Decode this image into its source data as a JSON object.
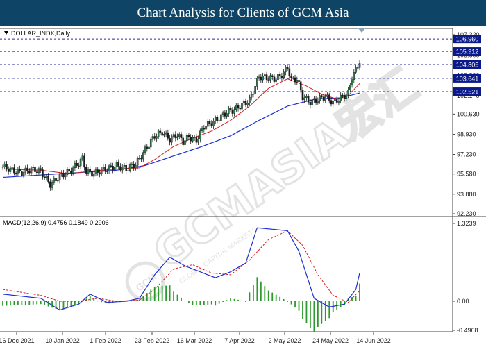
{
  "header": {
    "title": "Chart Analysis for Clients of GCM Asia"
  },
  "watermark": {
    "text": "GCMASIA宏汇",
    "subtext": "GLOBAL CAPITAL MARKETS",
    "logo_mark": "GCM"
  },
  "colors": {
    "bull": "#2e7d4f",
    "bear": "#1a1a1a",
    "ma_fast": "#d21e1e",
    "ma_slow": "#1c2fd1",
    "level_line": "#2a2a9a",
    "level_box": "#0a1a8a",
    "macd_line": "#1c2fd1",
    "signal_line": "#d21e1e",
    "hist": "#2e9a2e",
    "title_bg": "#0e4466"
  },
  "chart_data": [
    {
      "type": "candlestick",
      "symbol_label": "DOLLAR_INDX,Daily",
      "y_ticks": [
        "107.320",
        "105.600",
        "103.890",
        "102.170",
        "100.630",
        "98.930",
        "97.230",
        "95.580",
        "93.880",
        "92.230"
      ],
      "ylim": [
        92.23,
        107.32
      ],
      "x_tick_labels": [
        "16 Dec 2021",
        "10 Jan 2022",
        "1 Feb 2022",
        "23 Feb 2022",
        "16 Mar 2022",
        "7 Apr 2022",
        "2 May 2022",
        "24 May 2022",
        "14 Jun 2022"
      ],
      "levels": [
        {
          "value": 106.96,
          "label": "106.960"
        },
        {
          "value": 105.912,
          "label": "105.912"
        },
        {
          "value": 104.805,
          "label": "104.805"
        },
        {
          "value": 103.641,
          "label": "103.641"
        },
        {
          "value": 102.521,
          "label": "102.521"
        }
      ],
      "close_anchors": [
        [
          0,
          96.2
        ],
        [
          5,
          95.9
        ],
        [
          10,
          95.7
        ],
        [
          15,
          96.0
        ],
        [
          20,
          95.8
        ],
        [
          25,
          94.7
        ],
        [
          30,
          95.4
        ],
        [
          35,
          95.8
        ],
        [
          40,
          96.5
        ],
        [
          42,
          96.9
        ],
        [
          44,
          95.8
        ],
        [
          48,
          95.6
        ],
        [
          52,
          95.9
        ],
        [
          55,
          96.0
        ],
        [
          60,
          96.3
        ],
        [
          65,
          96.0
        ],
        [
          70,
          96.4
        ],
        [
          75,
          97.6
        ],
        [
          80,
          98.8
        ],
        [
          84,
          99.1
        ],
        [
          88,
          98.5
        ],
        [
          92,
          98.9
        ],
        [
          95,
          98.3
        ],
        [
          98,
          98.7
        ],
        [
          102,
          98.4
        ],
        [
          106,
          99.6
        ],
        [
          110,
          99.9
        ],
        [
          114,
          100.3
        ],
        [
          118,
          100.8
        ],
        [
          122,
          101.0
        ],
        [
          126,
          101.4
        ],
        [
          130,
          101.8
        ],
        [
          132,
          102.6
        ],
        [
          135,
          103.8
        ],
        [
          139,
          103.7
        ],
        [
          144,
          103.6
        ],
        [
          148,
          104.1
        ],
        [
          150,
          104.6
        ],
        [
          152,
          103.5
        ],
        [
          155,
          103.6
        ],
        [
          158,
          102.1
        ],
        [
          162,
          101.6
        ],
        [
          166,
          101.9
        ],
        [
          170,
          102.1
        ],
        [
          174,
          101.6
        ],
        [
          178,
          102.0
        ],
        [
          182,
          102.4
        ],
        [
          184,
          103.8
        ],
        [
          186,
          104.3
        ],
        [
          188,
          105.1
        ]
      ],
      "ma_fast_anchors": [
        [
          0,
          96.0
        ],
        [
          20,
          95.9
        ],
        [
          35,
          95.6
        ],
        [
          45,
          95.8
        ],
        [
          60,
          96.0
        ],
        [
          72,
          96.1
        ],
        [
          80,
          96.8
        ],
        [
          90,
          97.9
        ],
        [
          100,
          98.6
        ],
        [
          110,
          99.2
        ],
        [
          120,
          100.1
        ],
        [
          130,
          101.3
        ],
        [
          140,
          102.8
        ],
        [
          150,
          103.6
        ],
        [
          160,
          103.0
        ],
        [
          168,
          102.3
        ],
        [
          176,
          101.9
        ],
        [
          182,
          102.2
        ],
        [
          188,
          103.2
        ]
      ],
      "ma_slow_anchors": [
        [
          0,
          95.3
        ],
        [
          20,
          95.5
        ],
        [
          40,
          95.7
        ],
        [
          60,
          95.9
        ],
        [
          75,
          96.3
        ],
        [
          90,
          97.1
        ],
        [
          105,
          97.9
        ],
        [
          120,
          98.8
        ],
        [
          135,
          100.1
        ],
        [
          150,
          101.3
        ],
        [
          165,
          101.9
        ],
        [
          178,
          102.0
        ],
        [
          188,
          102.4
        ]
      ]
    },
    {
      "type": "macd",
      "label": "MACD(12,26,9) 0.4756 0.1849 0.2906",
      "y_ticks": [
        "1.3239",
        "0.00",
        "-0.4968"
      ],
      "ylim": [
        -0.4968,
        1.3239
      ],
      "macd_anchors": [
        [
          0,
          0.12
        ],
        [
          20,
          0.05
        ],
        [
          30,
          -0.15
        ],
        [
          40,
          -0.05
        ],
        [
          46,
          0.12
        ],
        [
          55,
          -0.02
        ],
        [
          65,
          0.0
        ],
        [
          72,
          0.05
        ],
        [
          80,
          0.45
        ],
        [
          88,
          0.75
        ],
        [
          96,
          0.6
        ],
        [
          104,
          0.5
        ],
        [
          112,
          0.4
        ],
        [
          120,
          0.5
        ],
        [
          128,
          0.65
        ],
        [
          134,
          1.25
        ],
        [
          144,
          1.22
        ],
        [
          150,
          1.2
        ],
        [
          156,
          0.85
        ],
        [
          164,
          0.05
        ],
        [
          172,
          -0.1
        ],
        [
          180,
          -0.05
        ],
        [
          186,
          0.2
        ],
        [
          188,
          0.48
        ]
      ],
      "signal_anchors": [
        [
          0,
          0.2
        ],
        [
          20,
          0.1
        ],
        [
          30,
          0.0
        ],
        [
          40,
          0.0
        ],
        [
          50,
          0.05
        ],
        [
          60,
          0.0
        ],
        [
          72,
          0.02
        ],
        [
          80,
          0.2
        ],
        [
          90,
          0.55
        ],
        [
          100,
          0.62
        ],
        [
          110,
          0.48
        ],
        [
          120,
          0.45
        ],
        [
          130,
          0.7
        ],
        [
          140,
          1.05
        ],
        [
          150,
          1.2
        ],
        [
          158,
          0.95
        ],
        [
          166,
          0.45
        ],
        [
          174,
          0.1
        ],
        [
          182,
          -0.02
        ],
        [
          188,
          0.18
        ]
      ]
    }
  ]
}
